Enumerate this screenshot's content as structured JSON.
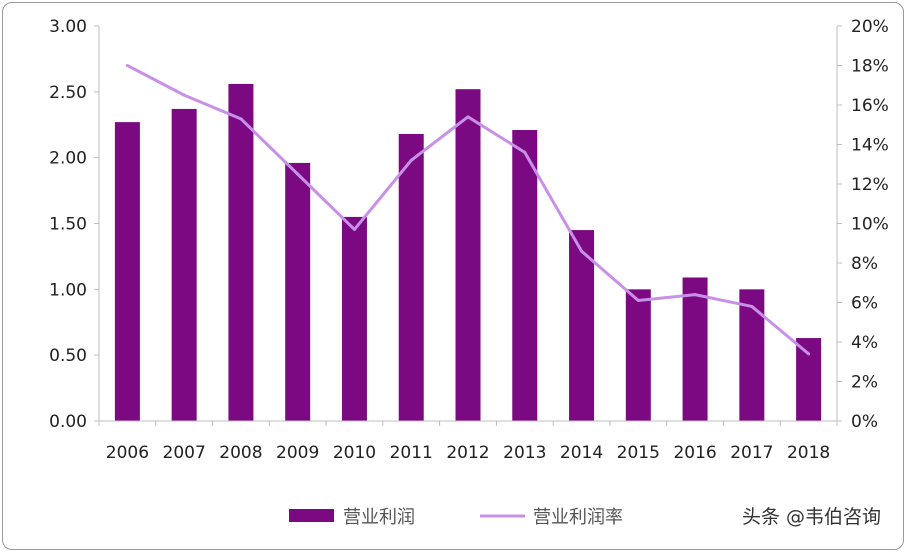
{
  "chart_data": {
    "type": "bar",
    "categories": [
      "2006",
      "2007",
      "2008",
      "2009",
      "2010",
      "2011",
      "2012",
      "2013",
      "2014",
      "2015",
      "2016",
      "2017",
      "2018"
    ],
    "series": [
      {
        "name": "营业利润",
        "type": "bar",
        "axis": "left",
        "values": [
          2.27,
          2.37,
          2.56,
          1.96,
          1.55,
          2.18,
          2.52,
          2.21,
          1.45,
          1.0,
          1.09,
          1.0,
          0.63
        ],
        "color": "#7b0a82"
      },
      {
        "name": "营业利润率",
        "type": "line",
        "axis": "right",
        "values": [
          18.0,
          16.5,
          15.3,
          12.5,
          9.7,
          13.2,
          15.4,
          13.6,
          8.6,
          6.1,
          6.4,
          5.8,
          3.4
        ],
        "color": "#c890e8"
      }
    ],
    "ylim_left": [
      0,
      3
    ],
    "yticks_left": [
      "0.00",
      "0.50",
      "1.00",
      "1.50",
      "2.00",
      "2.50",
      "3.00"
    ],
    "ylim_right": [
      0,
      20
    ],
    "yticks_right": [
      "0%",
      "2%",
      "4%",
      "6%",
      "8%",
      "10%",
      "12%",
      "14%",
      "16%",
      "18%",
      "20%"
    ],
    "legend_position": "bottom",
    "grid": false
  },
  "watermark": "头条 @韦伯咨询"
}
